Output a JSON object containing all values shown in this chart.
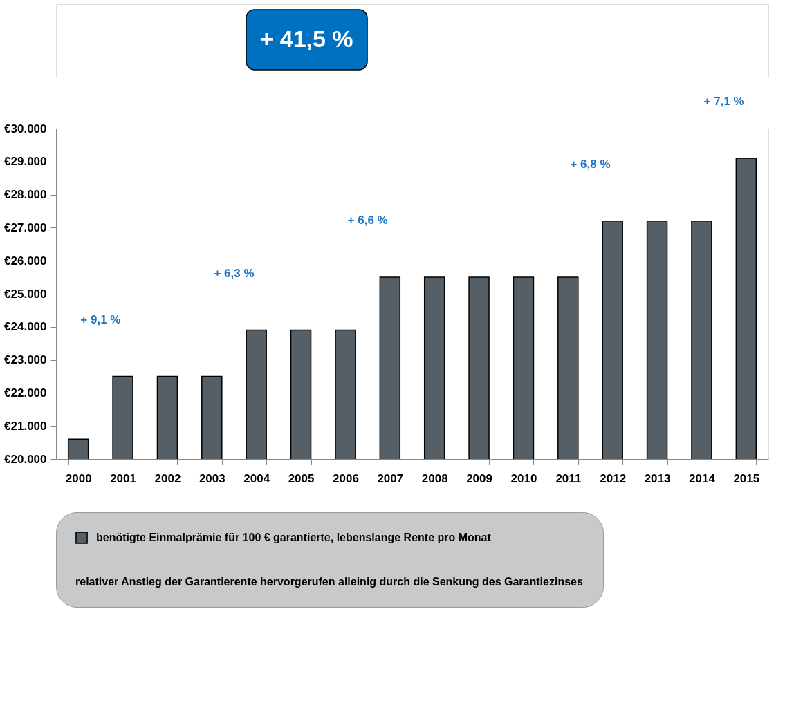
{
  "chart_data": {
    "type": "bar",
    "categories": [
      "2000",
      "2001",
      "2002",
      "2003",
      "2004",
      "2005",
      "2006",
      "2007",
      "2008",
      "2009",
      "2010",
      "2011",
      "2012",
      "2013",
      "2014",
      "2015"
    ],
    "series": [
      {
        "name": "benötigte Einmalprämie für 100 € garantierte, lebenslange Rente pro Monat",
        "color": "#565f66",
        "values": [
          20600,
          22500,
          22500,
          22500,
          23900,
          23900,
          23900,
          25500,
          25500,
          25500,
          25500,
          25500,
          27200,
          27200,
          27200,
          29100
        ]
      }
    ],
    "ylim": [
      20000,
      30000
    ],
    "yticks": [
      {
        "value": 20000,
        "label": "€20.000"
      },
      {
        "value": 21000,
        "label": "€21.000"
      },
      {
        "value": 22000,
        "label": "€22.000"
      },
      {
        "value": 23000,
        "label": "€23.000"
      },
      {
        "value": 24000,
        "label": "€24.000"
      },
      {
        "value": 25000,
        "label": "€25.000"
      },
      {
        "value": 26000,
        "label": "€26.000"
      },
      {
        "value": 27000,
        "label": "€27.000"
      },
      {
        "value": 28000,
        "label": "€28.000"
      },
      {
        "value": 29000,
        "label": "€29.000"
      },
      {
        "value": 30000,
        "label": "€30.000"
      }
    ],
    "grid": false,
    "legend": "bottom",
    "annotations": [
      "+ 41,5 %",
      "+ 9,1 %",
      "+ 6,3 %",
      "+ 6,6 %",
      "+ 6,8 %",
      "+ 7,1 %",
      "relativer Anstieg der Garantierente hervorgerufen alleinig durch die Senkung des Garantiezinses"
    ]
  }
}
